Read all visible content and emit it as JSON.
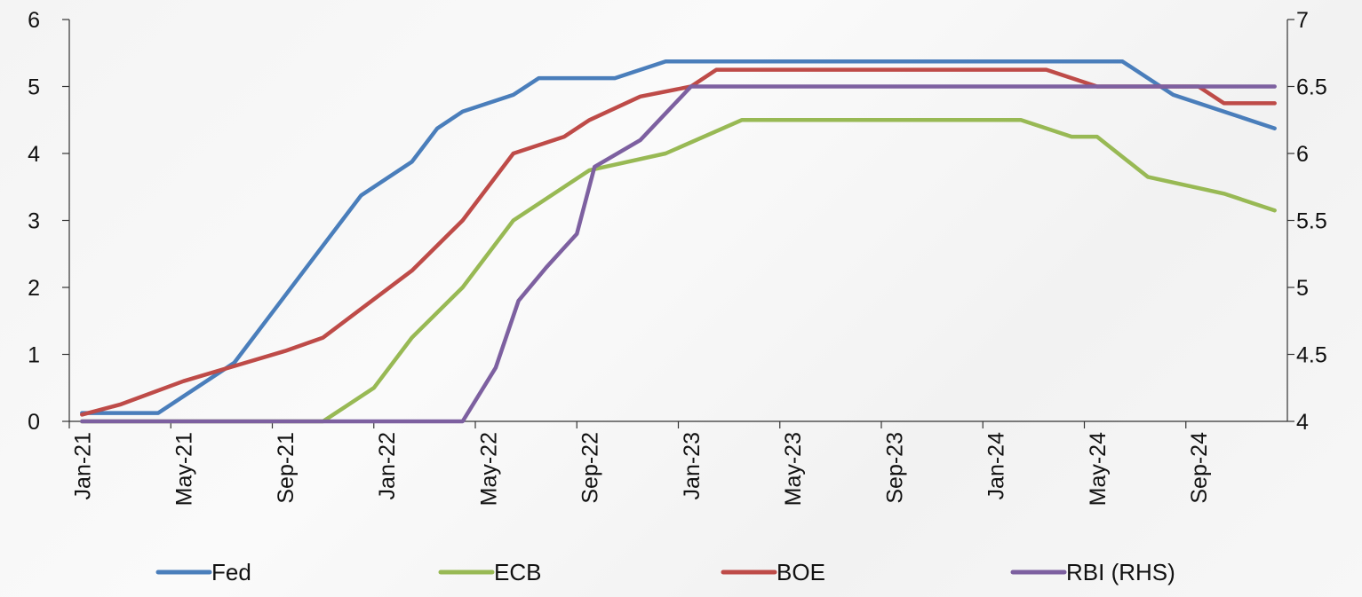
{
  "chart_data": {
    "type": "line",
    "title": "",
    "xlabel": "",
    "ylabel": "",
    "x_ticks": [
      "Jan-21",
      "May-21",
      "Sep-21",
      "Jan-22",
      "May-22",
      "Sep-22",
      "Jan-23",
      "May-23",
      "Sep-23",
      "Jan-24",
      "May-24",
      "Sep-24"
    ],
    "x_range": [
      "Jan-21",
      "Dec-24"
    ],
    "y_left": {
      "ylim": [
        0,
        6
      ],
      "ticks": [
        "0",
        "1",
        "2",
        "3",
        "4",
        "5",
        "6"
      ]
    },
    "y_right": {
      "ylim": [
        4,
        7
      ],
      "ticks": [
        "4",
        "4.5",
        "5",
        "5.5",
        "6",
        "6.5",
        "7"
      ]
    },
    "grid": false,
    "legend_position": "bottom",
    "series": [
      {
        "name": "Fed",
        "axis": "left",
        "color": "#4a7ebb",
        "points": [
          [
            0,
            0.125
          ],
          [
            2,
            0.125
          ],
          [
            3,
            0.125
          ],
          [
            4,
            0.375
          ],
          [
            6,
            0.875
          ],
          [
            7,
            1.375
          ],
          [
            9,
            2.375
          ],
          [
            11,
            3.375
          ],
          [
            13,
            3.875
          ],
          [
            14,
            4.375
          ],
          [
            15,
            4.625
          ],
          [
            17,
            4.875
          ],
          [
            18,
            5.125
          ],
          [
            21,
            5.125
          ],
          [
            23,
            5.375
          ],
          [
            41,
            5.375
          ],
          [
            43,
            4.875
          ],
          [
            47,
            4.375
          ]
        ]
      },
      {
        "name": "ECB",
        "axis": "left",
        "color": "#98b954",
        "points": [
          [
            0,
            0
          ],
          [
            9.5,
            0
          ],
          [
            11.5,
            0.5
          ],
          [
            13,
            1.25
          ],
          [
            15,
            2
          ],
          [
            17,
            3
          ],
          [
            20,
            3.75
          ],
          [
            23,
            4
          ],
          [
            26,
            4.5
          ],
          [
            37,
            4.5
          ],
          [
            39,
            4.25
          ],
          [
            40,
            4.25
          ],
          [
            42,
            3.65
          ],
          [
            45,
            3.4
          ],
          [
            47,
            3.15
          ]
        ]
      },
      {
        "name": "BOE",
        "axis": "left",
        "color": "#be4b48",
        "points": [
          [
            0,
            0.1
          ],
          [
            1.5,
            0.25
          ],
          [
            4,
            0.6
          ],
          [
            8,
            1.05
          ],
          [
            9.5,
            1.25
          ],
          [
            13,
            2.25
          ],
          [
            15,
            3
          ],
          [
            17,
            4
          ],
          [
            19,
            4.25
          ],
          [
            20,
            4.5
          ],
          [
            22,
            4.85
          ],
          [
            24,
            5
          ],
          [
            25,
            5.25
          ],
          [
            38,
            5.25
          ],
          [
            40,
            5
          ],
          [
            44,
            5
          ],
          [
            45,
            4.75
          ],
          [
            47,
            4.75
          ]
        ]
      },
      {
        "name": "RBI (RHS)",
        "axis": "right",
        "color": "#7d60a0",
        "points": [
          [
            0,
            4
          ],
          [
            15,
            4
          ],
          [
            16.3,
            4.4
          ],
          [
            17.2,
            4.9
          ],
          [
            18.3,
            5.15
          ],
          [
            19.5,
            5.4
          ],
          [
            20.2,
            5.9
          ],
          [
            22,
            6.1
          ],
          [
            24,
            6.5
          ],
          [
            47,
            6.5
          ]
        ]
      }
    ]
  }
}
